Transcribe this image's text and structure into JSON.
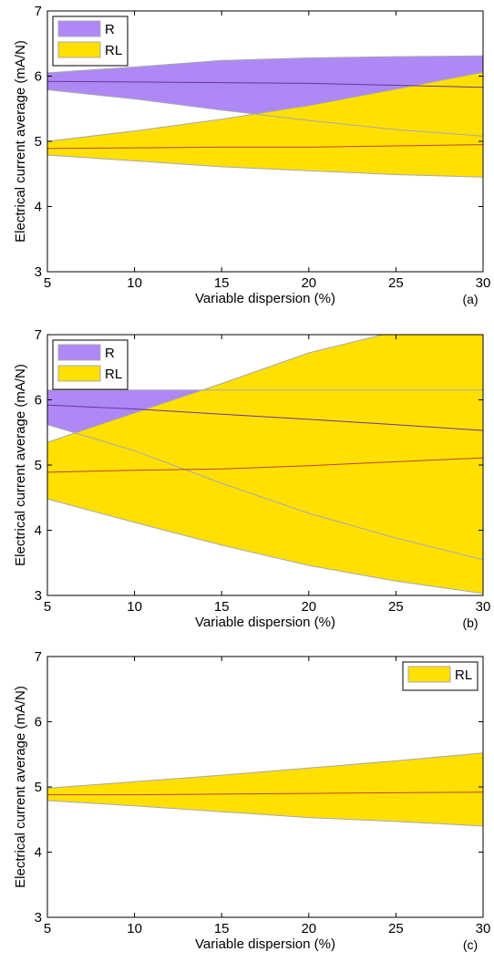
{
  "chart_data": [
    {
      "type": "area",
      "panel_label": "(a)",
      "xlabel": "Variable dispersion (%)",
      "ylabel": "Electrical current average (mA/N)",
      "xlim": [
        5,
        30
      ],
      "ylim": [
        3,
        7
      ],
      "x": [
        5,
        10,
        15,
        20,
        25,
        30
      ],
      "x_ticks": [
        "5",
        "10",
        "15",
        "20",
        "25",
        "30"
      ],
      "y_ticks": [
        "3",
        "4",
        "5",
        "6",
        "7"
      ],
      "grid": false,
      "legend_position": "top-left",
      "series": [
        {
          "name": "R",
          "fill_color": "#AE88F5",
          "line_color": "#7030A0",
          "mean": [
            5.92,
            5.91,
            5.9,
            5.89,
            5.86,
            5.83
          ],
          "upper": [
            6.05,
            6.14,
            6.24,
            6.28,
            6.3,
            6.31
          ],
          "lower": [
            5.79,
            5.65,
            5.48,
            5.32,
            5.18,
            5.08
          ]
        },
        {
          "name": "RL",
          "fill_color": "#FFE000",
          "line_color": "#C04040",
          "mean": [
            4.89,
            4.9,
            4.91,
            4.91,
            4.93,
            4.95
          ],
          "upper": [
            5.0,
            5.16,
            5.34,
            5.55,
            5.8,
            6.06
          ],
          "lower": [
            4.79,
            4.7,
            4.61,
            4.55,
            4.49,
            4.45
          ]
        }
      ]
    },
    {
      "type": "area",
      "panel_label": "(b)",
      "xlabel": "Variable dispersion (%)",
      "ylabel": "Electrical current average (mA/N)",
      "xlim": [
        5,
        30
      ],
      "ylim": [
        3,
        7
      ],
      "x": [
        5,
        10,
        15,
        20,
        25,
        30
      ],
      "x_ticks": [
        "5",
        "10",
        "15",
        "20",
        "25",
        "30"
      ],
      "y_ticks": [
        "3",
        "4",
        "5",
        "6",
        "7"
      ],
      "grid": false,
      "legend_position": "top-left",
      "series": [
        {
          "name": "R",
          "fill_color": "#AE88F5",
          "line_color": "#7030A0",
          "mean": [
            5.92,
            5.86,
            5.78,
            5.7,
            5.62,
            5.53
          ],
          "upper": [
            6.15,
            6.15,
            6.15,
            6.15,
            6.15,
            6.15
          ],
          "lower": [
            5.62,
            5.22,
            4.72,
            4.26,
            3.88,
            3.55
          ]
        },
        {
          "name": "RL",
          "fill_color": "#FFE000",
          "line_color": "#C04040",
          "mean": [
            4.89,
            4.92,
            4.94,
            4.99,
            5.05,
            5.11
          ],
          "upper": [
            5.35,
            5.8,
            6.25,
            6.72,
            7.05,
            7.05
          ],
          "lower": [
            4.48,
            4.12,
            3.77,
            3.46,
            3.22,
            3.03
          ]
        }
      ]
    },
    {
      "type": "area",
      "panel_label": "(c)",
      "xlabel": "Variable dispersion (%)",
      "ylabel": "Electrical current average (mA/N)",
      "xlim": [
        5,
        30
      ],
      "ylim": [
        3,
        7
      ],
      "x": [
        5,
        10,
        15,
        20,
        25,
        30
      ],
      "x_ticks": [
        "5",
        "10",
        "15",
        "20",
        "25",
        "30"
      ],
      "y_ticks": [
        "3",
        "4",
        "5",
        "6",
        "7"
      ],
      "grid": false,
      "legend_position": "top-right",
      "series": [
        {
          "name": "RL",
          "fill_color": "#FFE000",
          "line_color": "#C04040",
          "mean": [
            4.88,
            4.88,
            4.89,
            4.9,
            4.91,
            4.92
          ],
          "upper": [
            4.98,
            5.08,
            5.18,
            5.29,
            5.4,
            5.52
          ],
          "lower": [
            4.79,
            4.71,
            4.62,
            4.53,
            4.47,
            4.4
          ]
        }
      ]
    }
  ]
}
